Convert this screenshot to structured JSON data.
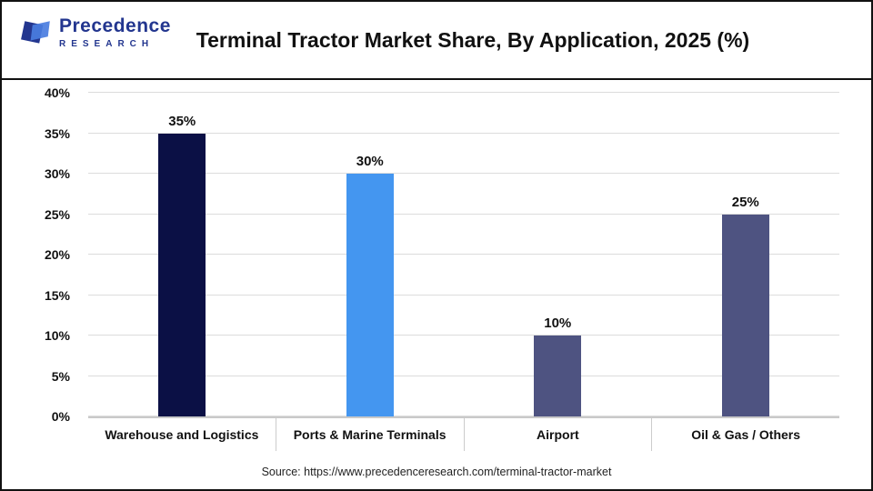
{
  "header": {
    "title": "Terminal Tractor Market Share, By Application, 2025 (%)",
    "logo": {
      "line1": "Precedence",
      "line2": "RESEARCH"
    }
  },
  "chart_data": {
    "type": "bar",
    "title": "Terminal Tractor Market Share, By Application, 2025 (%)",
    "categories": [
      "Warehouse and Logistics",
      "Ports & Marine Terminals",
      "Airport",
      "Oil & Gas / Others"
    ],
    "values": [
      35,
      30,
      10,
      25
    ],
    "value_labels": [
      "35%",
      "30%",
      "10%",
      "25%"
    ],
    "colors": [
      "#0b1045",
      "#4496f0",
      "#4e5381",
      "#4e5381"
    ],
    "xlabel": "",
    "ylabel": "",
    "ylim": [
      0,
      40
    ],
    "yticks": [
      "0%",
      "5%",
      "10%",
      "15%",
      "20%",
      "25%",
      "30%",
      "35%",
      "40%"
    ],
    "grid": "horizontal",
    "legend": "none"
  },
  "footer": {
    "source": "Source: https://www.precedenceresearch.com/terminal-tractor-market"
  }
}
